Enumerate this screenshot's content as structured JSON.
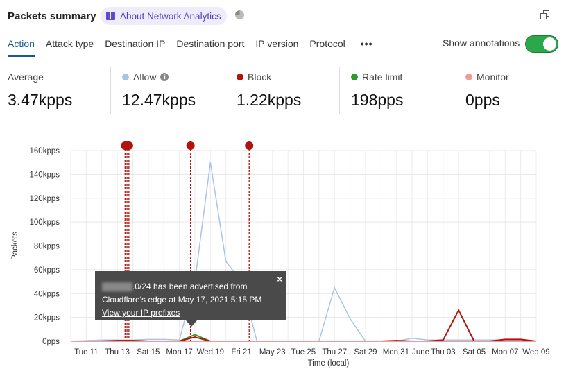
{
  "header": {
    "title": "Packets summary",
    "about_label": "About Network Analytics",
    "icons": [
      "book-icon",
      "pie-chart-icon",
      "copy-icon"
    ]
  },
  "tabs": [
    {
      "label": "Action",
      "active": true
    },
    {
      "label": "Attack type"
    },
    {
      "label": "Destination IP"
    },
    {
      "label": "Destination port"
    },
    {
      "label": "IP version"
    },
    {
      "label": "Protocol"
    },
    {
      "label": "•••"
    }
  ],
  "annotations_toggle": {
    "label": "Show annotations",
    "on": true
  },
  "stats": [
    {
      "label": "Average",
      "value": "3.47kpps"
    },
    {
      "label": "Allow",
      "value": "12.47kpps",
      "color": "#a9c4e6",
      "info": true
    },
    {
      "label": "Block",
      "value": "1.22kpps",
      "color": "#b0140c"
    },
    {
      "label": "Rate limit",
      "value": "198pps",
      "color": "#2a9d2a"
    },
    {
      "label": "Monitor",
      "value": "0pps",
      "color": "#f29a9a"
    }
  ],
  "tooltip": {
    "text": ".0/24 has been advertised from",
    "text2": "Cloudflare's edge at May 17, 2021 5:15 PM",
    "link": "View your IP prefixes",
    "close": "×"
  },
  "chart_data": {
    "type": "line",
    "ylabel": "Packets",
    "xlabel": "Time (local)",
    "xlim": [
      "2021-05-10",
      "2021-06-09"
    ],
    "ylim": [
      0,
      160000
    ],
    "grid": true,
    "yticks": [
      "0pps",
      "20kpps",
      "40kpps",
      "60kpps",
      "80kpps",
      "100kpps",
      "120kpps",
      "140kpps",
      "160kpps"
    ],
    "xticks": [
      [
        "2021-05-11",
        "Tue 11"
      ],
      [
        "2021-05-13",
        "Thu 13"
      ],
      [
        "2021-05-15",
        "Sat 15"
      ],
      [
        "2021-05-17",
        "Mon 17"
      ],
      [
        "2021-05-19",
        "Wed 19"
      ],
      [
        "2021-05-21",
        "Fri 21"
      ],
      [
        "2021-05-23",
        "May 23"
      ],
      [
        "2021-05-25",
        "Tue 25"
      ],
      [
        "2021-05-27",
        "Thu 27"
      ],
      [
        "2021-05-29",
        "Sat 29"
      ],
      [
        "2021-05-31",
        "Mon 31"
      ],
      [
        "2021-06-01",
        "June"
      ],
      [
        "2021-06-03",
        "Thu 03"
      ],
      [
        "2021-06-05",
        "Sat 05"
      ],
      [
        "2021-06-07",
        "Mon 07"
      ],
      [
        "2021-06-09",
        "Wed 09"
      ]
    ],
    "dates": [
      "2021-05-10",
      "2021-05-11",
      "2021-05-12",
      "2021-05-13",
      "2021-05-14",
      "2021-05-15",
      "2021-05-16",
      "2021-05-17",
      "2021-05-18",
      "2021-05-19",
      "2021-05-20",
      "2021-05-21",
      "2021-05-22",
      "2021-05-23",
      "2021-05-24",
      "2021-05-25",
      "2021-05-26",
      "2021-05-27",
      "2021-05-28",
      "2021-05-29",
      "2021-05-30",
      "2021-05-31",
      "2021-06-01",
      "2021-06-02",
      "2021-06-03",
      "2021-06-04",
      "2021-06-05",
      "2021-06-06",
      "2021-06-07",
      "2021-06-08",
      "2021-06-09"
    ],
    "series": [
      {
        "name": "Allow",
        "color": "#a9c4e6",
        "values": [
          0,
          500,
          1000,
          1000,
          1000,
          1500,
          1500,
          1000,
          50000,
          150000,
          67000,
          50000,
          0,
          0,
          0,
          0,
          0,
          45000,
          19000,
          0,
          0,
          0,
          2500,
          1000,
          1000,
          1000,
          1000,
          1000,
          1000,
          1000,
          0
        ]
      },
      {
        "name": "Rate limit",
        "color": "#2a9d2a",
        "values": [
          0,
          0,
          0,
          0,
          0,
          0,
          0,
          0,
          5500,
          0,
          0,
          0,
          0,
          0,
          0,
          0,
          0,
          0,
          0,
          0,
          0,
          0,
          0,
          0,
          0,
          0,
          0,
          0,
          0,
          0,
          0
        ]
      },
      {
        "name": "Block",
        "color": "#b0140c",
        "values": [
          0,
          0,
          0,
          500,
          500,
          0,
          0,
          0,
          3500,
          0,
          0,
          0,
          0,
          0,
          0,
          0,
          0,
          0,
          0,
          0,
          0,
          500,
          0,
          0,
          1000,
          26000,
          0,
          0,
          1500,
          1500,
          0
        ]
      },
      {
        "name": "Monitor",
        "color": "#f29a9a",
        "values": [
          0,
          0,
          0,
          0,
          0,
          0,
          0,
          0,
          0,
          0,
          0,
          0,
          0,
          0,
          0,
          0,
          0,
          0,
          0,
          0,
          0,
          0,
          0,
          0,
          0,
          0,
          0,
          0,
          0,
          0,
          0
        ]
      }
    ],
    "annotations": [
      "2021-05-13T12:00",
      "2021-05-13T15:00",
      "2021-05-13T18:00",
      "2021-05-17T17:15",
      "2021-05-21T12:00"
    ],
    "annotation_color": "#b0140c"
  }
}
